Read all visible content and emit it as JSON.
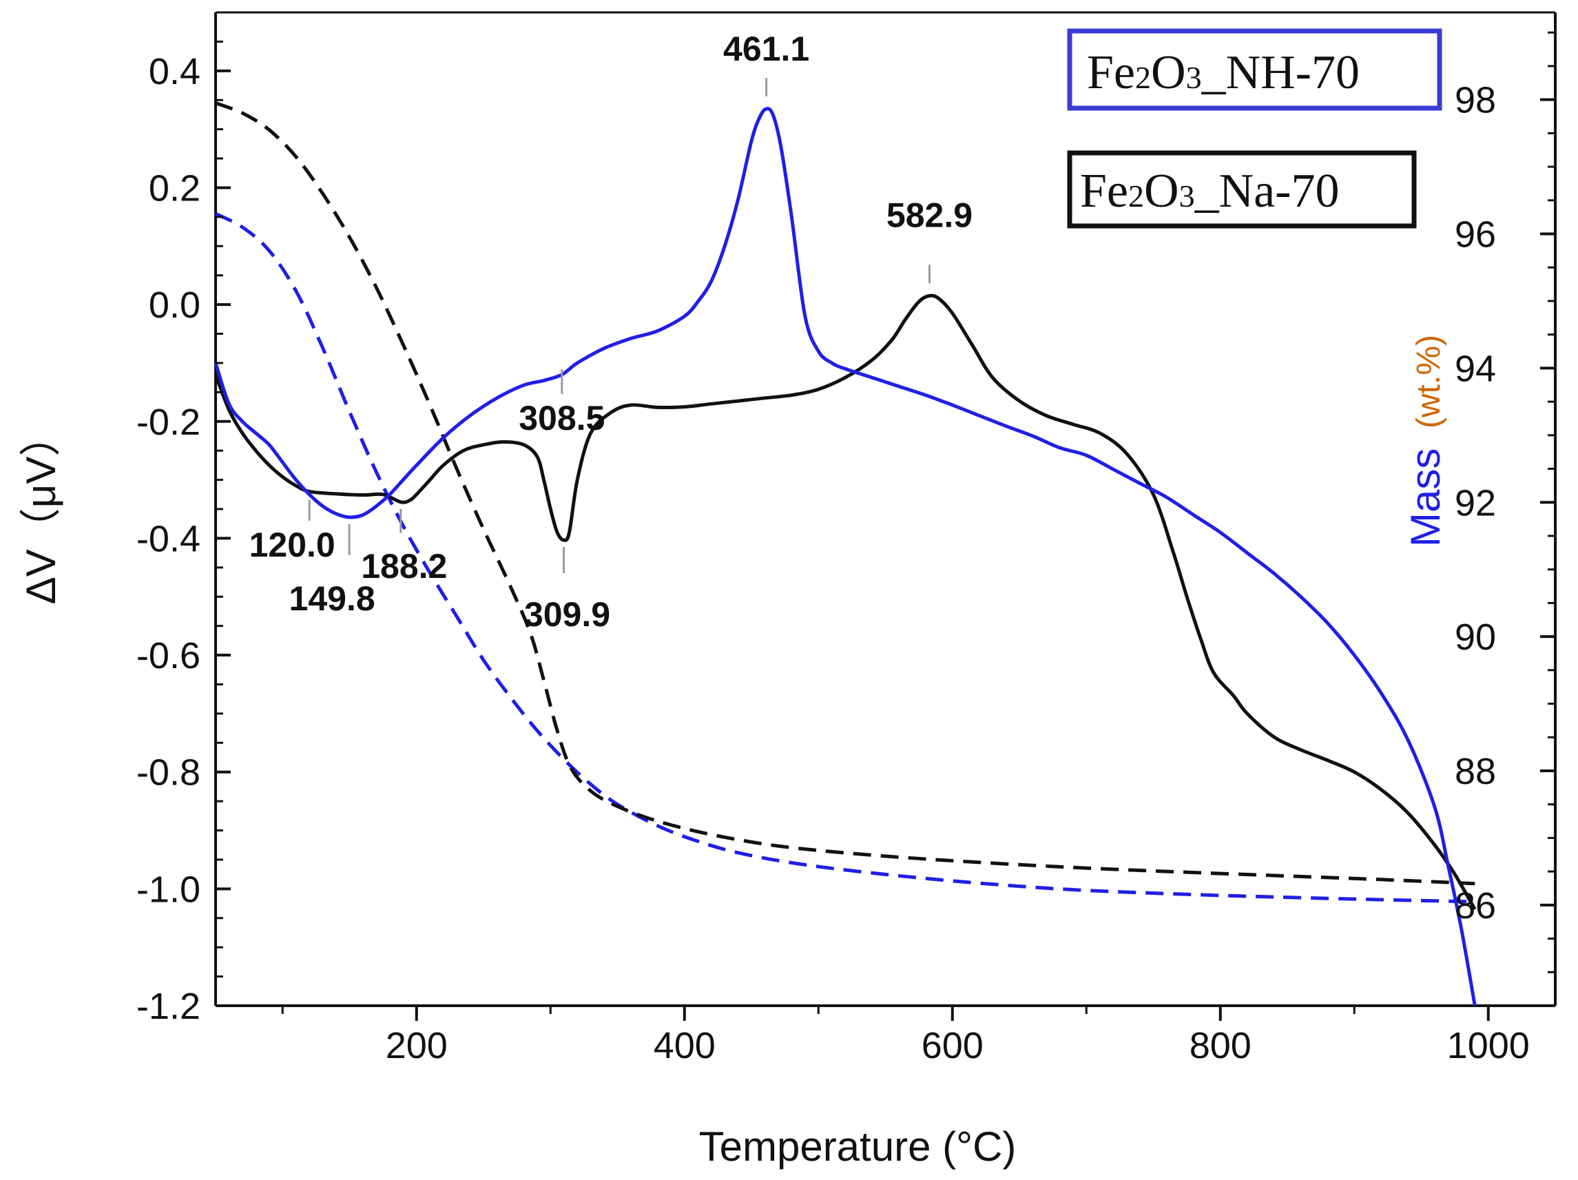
{
  "chart_data": {
    "type": "line",
    "title": "",
    "xlabel": "Temperature (°C)",
    "ylabel_left": "ΔV（μV）",
    "ylabel_right_main": "Mass",
    "ylabel_right_unit": "(wt.%)",
    "xlim": [
      50,
      1050
    ],
    "ylim_left": [
      -1.2,
      0.5
    ],
    "ylim_right": [
      84.5,
      99.3
    ],
    "x_ticks": [
      "200",
      "400",
      "600",
      "800",
      "1000"
    ],
    "x_tick_values": [
      200,
      400,
      600,
      800,
      1000
    ],
    "left_ticks": [
      "0.4",
      "0.2",
      "0.0",
      "-0.2",
      "-0.4",
      "-0.6",
      "-0.8",
      "-1.0",
      "-1.2"
    ],
    "left_tick_values": [
      0.4,
      0.2,
      0.0,
      -0.2,
      -0.4,
      -0.6,
      -0.8,
      -1.0,
      -1.2
    ],
    "right_ticks": [
      "98",
      "96",
      "94",
      "92",
      "90",
      "88",
      "86"
    ],
    "right_tick_values": [
      98,
      96,
      94,
      92,
      90,
      88,
      86
    ],
    "colors": {
      "nh": "#1f1fe6",
      "na": "#111111",
      "annotation_line": "#9a9a9a"
    },
    "legend": [
      {
        "label_prefix": "Fe",
        "sub1": "2",
        "mid": "O",
        "sub2": "3",
        "label_suffix": "_NH-70",
        "box_color": "#3a3ad6"
      },
      {
        "label_prefix": "Fe",
        "sub1": "2",
        "mid": "O",
        "sub2": "3",
        "label_suffix": "_Na-70",
        "box_color": "#111111"
      }
    ],
    "series": [
      {
        "name": "Fe2O3_NH-70 DTA",
        "axis": "left",
        "style": "solid",
        "color_key": "nh",
        "points": [
          [
            50,
            -0.1
          ],
          [
            60,
            -0.17
          ],
          [
            70,
            -0.2
          ],
          [
            80,
            -0.22
          ],
          [
            90,
            -0.24
          ],
          [
            100,
            -0.27
          ],
          [
            110,
            -0.3
          ],
          [
            120,
            -0.325
          ],
          [
            130,
            -0.345
          ],
          [
            140,
            -0.358
          ],
          [
            149.8,
            -0.364
          ],
          [
            160,
            -0.36
          ],
          [
            170,
            -0.345
          ],
          [
            180,
            -0.325
          ],
          [
            190,
            -0.3
          ],
          [
            200,
            -0.275
          ],
          [
            220,
            -0.228
          ],
          [
            240,
            -0.19
          ],
          [
            260,
            -0.16
          ],
          [
            280,
            -0.138
          ],
          [
            295,
            -0.13
          ],
          [
            308.5,
            -0.12
          ],
          [
            320,
            -0.1
          ],
          [
            340,
            -0.075
          ],
          [
            360,
            -0.058
          ],
          [
            380,
            -0.045
          ],
          [
            400,
            -0.02
          ],
          [
            410,
            0.005
          ],
          [
            420,
            0.04
          ],
          [
            430,
            0.1
          ],
          [
            440,
            0.18
          ],
          [
            450,
            0.28
          ],
          [
            456,
            0.32
          ],
          [
            461.1,
            0.335
          ],
          [
            466,
            0.325
          ],
          [
            472,
            0.27
          ],
          [
            480,
            0.15
          ],
          [
            490,
            -0.02
          ],
          [
            500,
            -0.08
          ],
          [
            510,
            -0.1
          ],
          [
            520,
            -0.11
          ],
          [
            540,
            -0.125
          ],
          [
            560,
            -0.14
          ],
          [
            580,
            -0.155
          ],
          [
            600,
            -0.172
          ],
          [
            620,
            -0.19
          ],
          [
            640,
            -0.208
          ],
          [
            660,
            -0.225
          ],
          [
            680,
            -0.245
          ],
          [
            700,
            -0.258
          ],
          [
            720,
            -0.282
          ],
          [
            740,
            -0.306
          ],
          [
            760,
            -0.33
          ],
          [
            780,
            -0.36
          ],
          [
            800,
            -0.39
          ],
          [
            820,
            -0.425
          ],
          [
            840,
            -0.46
          ],
          [
            860,
            -0.5
          ],
          [
            880,
            -0.545
          ],
          [
            900,
            -0.6
          ],
          [
            920,
            -0.665
          ],
          [
            940,
            -0.745
          ],
          [
            960,
            -0.86
          ],
          [
            970,
            -0.96
          ],
          [
            980,
            -1.07
          ],
          [
            990,
            -1.2
          ]
        ]
      },
      {
        "name": "Fe2O3_Na-70 DTA",
        "axis": "left",
        "style": "solid",
        "color_key": "na",
        "points": [
          [
            50,
            -0.12
          ],
          [
            60,
            -0.18
          ],
          [
            70,
            -0.22
          ],
          [
            80,
            -0.25
          ],
          [
            90,
            -0.275
          ],
          [
            100,
            -0.295
          ],
          [
            110,
            -0.31
          ],
          [
            120,
            -0.32
          ],
          [
            140,
            -0.324
          ],
          [
            160,
            -0.326
          ],
          [
            175,
            -0.325
          ],
          [
            188.2,
            -0.338
          ],
          [
            195,
            -0.335
          ],
          [
            200,
            -0.325
          ],
          [
            210,
            -0.3
          ],
          [
            220,
            -0.275
          ],
          [
            235,
            -0.25
          ],
          [
            250,
            -0.24
          ],
          [
            265,
            -0.235
          ],
          [
            280,
            -0.24
          ],
          [
            290,
            -0.26
          ],
          [
            295,
            -0.3
          ],
          [
            300,
            -0.35
          ],
          [
            305,
            -0.39
          ],
          [
            309.9,
            -0.403
          ],
          [
            314,
            -0.39
          ],
          [
            320,
            -0.3
          ],
          [
            330,
            -0.22
          ],
          [
            345,
            -0.185
          ],
          [
            360,
            -0.172
          ],
          [
            380,
            -0.176
          ],
          [
            400,
            -0.175
          ],
          [
            420,
            -0.17
          ],
          [
            440,
            -0.165
          ],
          [
            460,
            -0.16
          ],
          [
            480,
            -0.155
          ],
          [
            500,
            -0.145
          ],
          [
            520,
            -0.125
          ],
          [
            540,
            -0.095
          ],
          [
            555,
            -0.06
          ],
          [
            565,
            -0.025
          ],
          [
            575,
            0.005
          ],
          [
            582.9,
            0.015
          ],
          [
            590,
            0.01
          ],
          [
            600,
            -0.015
          ],
          [
            615,
            -0.07
          ],
          [
            630,
            -0.125
          ],
          [
            650,
            -0.165
          ],
          [
            670,
            -0.19
          ],
          [
            690,
            -0.205
          ],
          [
            710,
            -0.22
          ],
          [
            730,
            -0.255
          ],
          [
            750,
            -0.325
          ],
          [
            765,
            -0.425
          ],
          [
            775,
            -0.5
          ],
          [
            785,
            -0.57
          ],
          [
            795,
            -0.63
          ],
          [
            810,
            -0.67
          ],
          [
            820,
            -0.7
          ],
          [
            840,
            -0.74
          ],
          [
            860,
            -0.762
          ],
          [
            880,
            -0.78
          ],
          [
            900,
            -0.8
          ],
          [
            920,
            -0.83
          ],
          [
            940,
            -0.87
          ],
          [
            960,
            -0.925
          ],
          [
            975,
            -0.975
          ],
          [
            990,
            -1.035
          ]
        ]
      },
      {
        "name": "Fe2O3_NH-70 Mass",
        "axis": "right",
        "style": "dashed",
        "color_key": "nh",
        "points": [
          [
            50,
            96.3
          ],
          [
            70,
            96.1
          ],
          [
            90,
            95.75
          ],
          [
            110,
            95.15
          ],
          [
            130,
            94.3
          ],
          [
            150,
            93.35
          ],
          [
            170,
            92.45
          ],
          [
            190,
            91.65
          ],
          [
            210,
            90.95
          ],
          [
            230,
            90.3
          ],
          [
            250,
            89.65
          ],
          [
            270,
            89.1
          ],
          [
            290,
            88.6
          ],
          [
            310,
            88.17
          ],
          [
            330,
            87.8
          ],
          [
            350,
            87.5
          ],
          [
            380,
            87.18
          ],
          [
            410,
            86.95
          ],
          [
            440,
            86.78
          ],
          [
            480,
            86.63
          ],
          [
            530,
            86.5
          ],
          [
            600,
            86.36
          ],
          [
            680,
            86.24
          ],
          [
            760,
            86.17
          ],
          [
            840,
            86.12
          ],
          [
            920,
            86.08
          ],
          [
            990,
            86.05
          ]
        ]
      },
      {
        "name": "Fe2O3_Na-70 Mass",
        "axis": "right",
        "style": "dashed",
        "color_key": "na",
        "points": [
          [
            50,
            97.95
          ],
          [
            70,
            97.8
          ],
          [
            90,
            97.55
          ],
          [
            110,
            97.15
          ],
          [
            130,
            96.6
          ],
          [
            150,
            95.95
          ],
          [
            170,
            95.2
          ],
          [
            190,
            94.35
          ],
          [
            210,
            93.45
          ],
          [
            230,
            92.5
          ],
          [
            250,
            91.6
          ],
          [
            270,
            90.75
          ],
          [
            285,
            90.05
          ],
          [
            295,
            89.35
          ],
          [
            305,
            88.6
          ],
          [
            315,
            88.05
          ],
          [
            330,
            87.7
          ],
          [
            350,
            87.47
          ],
          [
            380,
            87.25
          ],
          [
            420,
            87.05
          ],
          [
            470,
            86.88
          ],
          [
            530,
            86.76
          ],
          [
            600,
            86.66
          ],
          [
            680,
            86.57
          ],
          [
            760,
            86.5
          ],
          [
            840,
            86.44
          ],
          [
            920,
            86.38
          ],
          [
            990,
            86.32
          ]
        ]
      }
    ],
    "annotations": [
      {
        "text": "461.1",
        "x": 461.1,
        "y": 0.335,
        "side": "above"
      },
      {
        "text": "582.9",
        "x": 582.9,
        "y": 0.015,
        "side": "above"
      },
      {
        "text": "308.5",
        "x": 308.5,
        "y": -0.12,
        "side": "below"
      },
      {
        "text": "120.0",
        "x": 120.0,
        "y": -0.325,
        "side": "below"
      },
      {
        "text": "149.8",
        "x": 149.8,
        "y": -0.364,
        "side": "below"
      },
      {
        "text": "188.2",
        "x": 188.2,
        "y": -0.338,
        "side": "below"
      },
      {
        "text": "309.9",
        "x": 309.9,
        "y": -0.403,
        "side": "below"
      }
    ]
  }
}
